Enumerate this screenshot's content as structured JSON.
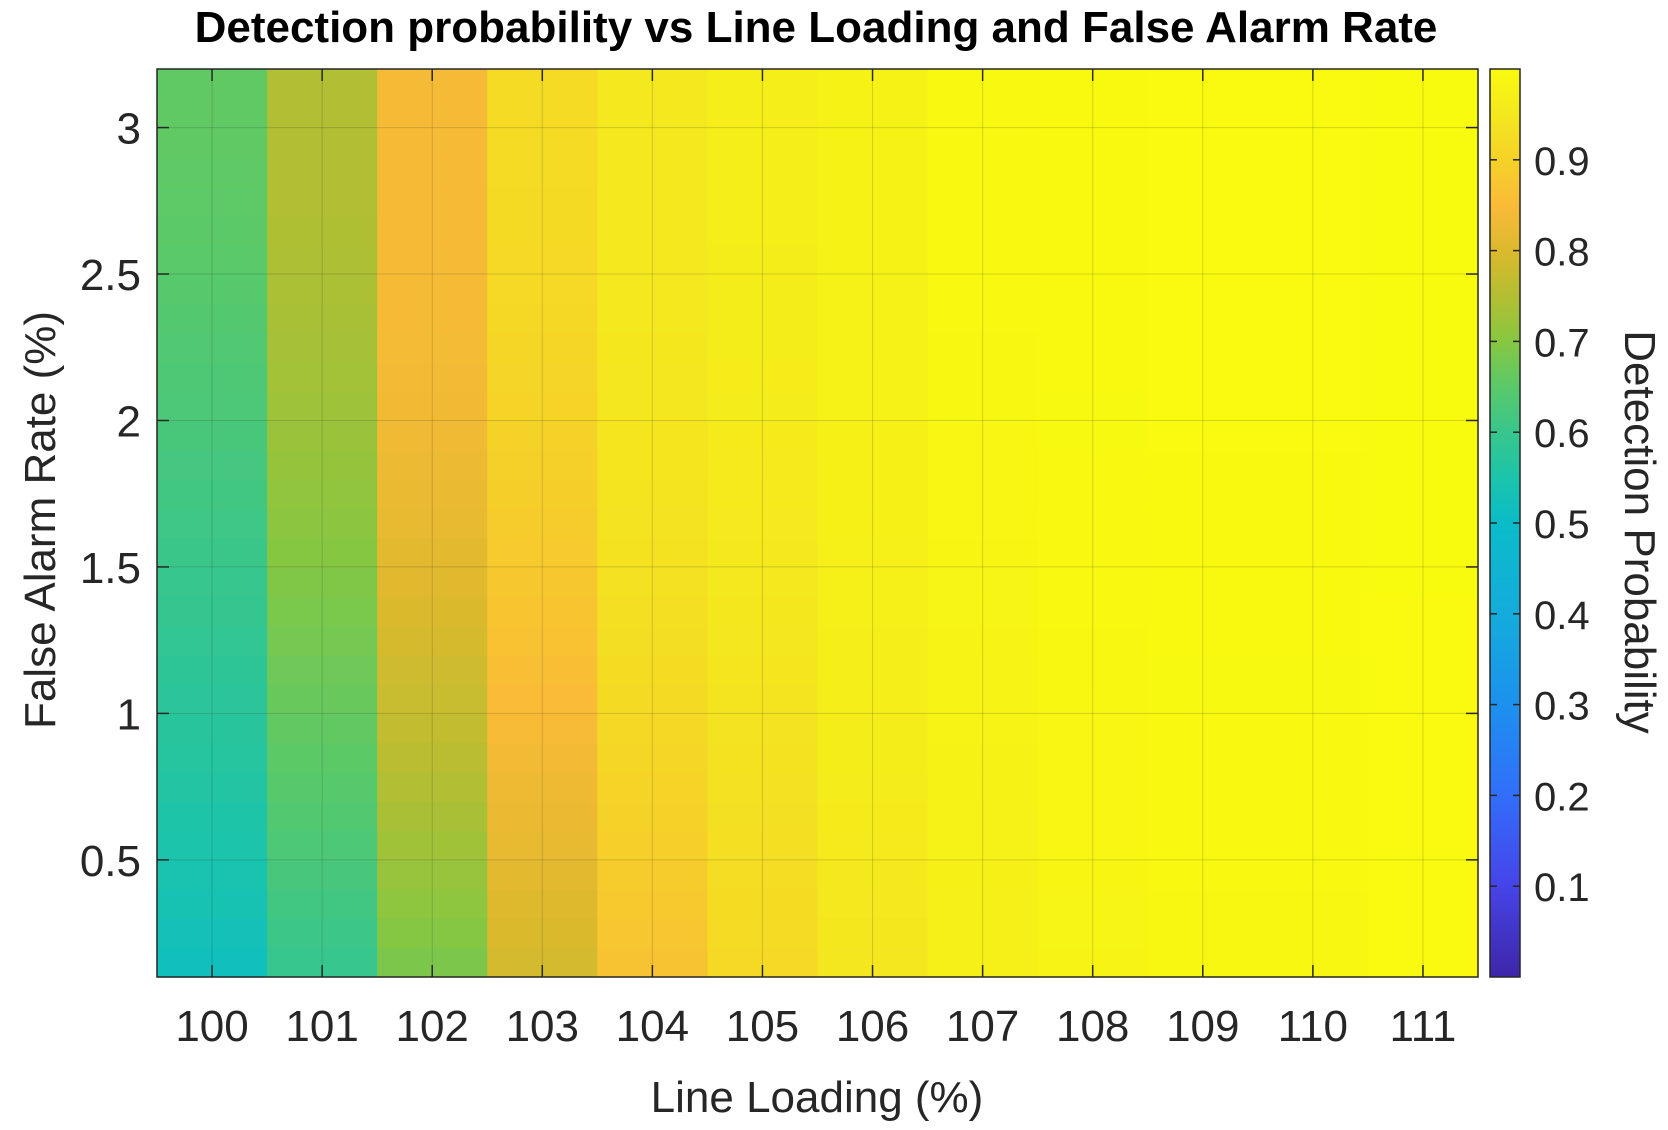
{
  "chart_data": {
    "type": "heatmap",
    "title": "Detection probability vs Line Loading and False Alarm Rate",
    "xlabel": "Line Loading (%)",
    "ylabel": "False Alarm Rate (%)",
    "colorbar_label": "Detection Probability",
    "x": [
      100,
      101,
      102,
      103,
      104,
      105,
      106,
      107,
      108,
      109,
      110,
      111
    ],
    "xlim": [
      99.5,
      111.5
    ],
    "y": [
      0.15,
      0.25,
      0.35,
      0.45,
      0.55,
      0.65,
      0.75,
      0.85,
      0.95,
      1.05,
      1.15,
      1.25,
      1.35,
      1.45,
      1.55,
      1.65,
      1.75,
      1.85,
      1.95,
      2.05,
      2.15,
      2.25,
      2.35,
      2.45,
      2.55,
      2.65,
      2.75,
      2.85,
      2.95,
      3.05,
      3.15
    ],
    "ylim": [
      0.1,
      3.2
    ],
    "x_ticks": [
      "100",
      "101",
      "102",
      "103",
      "104",
      "105",
      "106",
      "107",
      "108",
      "109",
      "110",
      "111"
    ],
    "y_ticks": [
      0.5,
      1,
      1.5,
      2,
      2.5,
      3
    ],
    "y_tick_labels": [
      "0.5",
      "1",
      "1.5",
      "2",
      "2.5",
      "3"
    ],
    "colorbar_range": [
      0.0,
      1.0
    ],
    "colorbar_ticks": [
      0.1,
      0.2,
      0.3,
      0.4,
      0.5,
      0.6,
      0.7,
      0.8,
      0.9
    ],
    "colorbar_tick_labels": [
      "0.1",
      "0.2",
      "0.3",
      "0.4",
      "0.5",
      "0.6",
      "0.7",
      "0.8",
      "0.9"
    ],
    "colormap": "parula",
    "grid": true,
    "col_base": [
      0.52,
      0.598,
      0.688,
      0.79,
      0.867,
      0.917,
      0.945,
      0.968,
      0.982,
      0.99,
      0.99,
      0.998
    ],
    "col_top": [
      0.658,
      0.745,
      0.843,
      0.92,
      0.95,
      0.965,
      0.975,
      0.992,
      0.996,
      0.998,
      0.998,
      0.999
    ],
    "values": [
      [
        0.52,
        0.598,
        0.688,
        0.79,
        0.867,
        0.917,
        0.945,
        0.968,
        0.982,
        0.99,
        0.99,
        0.998
      ],
      [
        0.527,
        0.606,
        0.698,
        0.797,
        0.874,
        0.92,
        0.948,
        0.969,
        0.983,
        0.99,
        0.99,
        0.998
      ],
      [
        0.535,
        0.615,
        0.708,
        0.804,
        0.88,
        0.923,
        0.951,
        0.97,
        0.984,
        0.99,
        0.99,
        0.998
      ],
      [
        0.542,
        0.623,
        0.718,
        0.811,
        0.887,
        0.926,
        0.953,
        0.972,
        0.985,
        0.991,
        0.991,
        0.998
      ],
      [
        0.548,
        0.63,
        0.728,
        0.818,
        0.893,
        0.929,
        0.956,
        0.973,
        0.986,
        0.992,
        0.992,
        0.998
      ],
      [
        0.554,
        0.638,
        0.738,
        0.825,
        0.899,
        0.931,
        0.958,
        0.974,
        0.986,
        0.992,
        0.992,
        0.998
      ],
      [
        0.56,
        0.645,
        0.748,
        0.832,
        0.904,
        0.934,
        0.96,
        0.975,
        0.987,
        0.993,
        0.993,
        0.998
      ],
      [
        0.566,
        0.652,
        0.757,
        0.839,
        0.909,
        0.937,
        0.962,
        0.977,
        0.988,
        0.993,
        0.993,
        0.998
      ],
      [
        0.572,
        0.659,
        0.766,
        0.846,
        0.914,
        0.939,
        0.963,
        0.978,
        0.988,
        0.993,
        0.993,
        0.998
      ],
      [
        0.578,
        0.666,
        0.775,
        0.852,
        0.919,
        0.942,
        0.965,
        0.979,
        0.989,
        0.994,
        0.994,
        0.998
      ],
      [
        0.583,
        0.673,
        0.783,
        0.859,
        0.923,
        0.944,
        0.966,
        0.98,
        0.99,
        0.994,
        0.994,
        0.998
      ],
      [
        0.588,
        0.68,
        0.791,
        0.865,
        0.927,
        0.946,
        0.967,
        0.982,
        0.99,
        0.995,
        0.995,
        0.998
      ],
      [
        0.594,
        0.686,
        0.799,
        0.871,
        0.93,
        0.948,
        0.968,
        0.983,
        0.991,
        0.995,
        0.995,
        0.998
      ],
      [
        0.599,
        0.693,
        0.806,
        0.876,
        0.933,
        0.95,
        0.969,
        0.984,
        0.991,
        0.995,
        0.995,
        0.999
      ],
      [
        0.604,
        0.699,
        0.812,
        0.882,
        0.936,
        0.952,
        0.97,
        0.985,
        0.992,
        0.996,
        0.996,
        0.999
      ],
      [
        0.609,
        0.705,
        0.818,
        0.887,
        0.939,
        0.954,
        0.971,
        0.986,
        0.992,
        0.996,
        0.996,
        0.999
      ],
      [
        0.614,
        0.711,
        0.824,
        0.892,
        0.941,
        0.956,
        0.971,
        0.987,
        0.993,
        0.996,
        0.996,
        0.999
      ],
      [
        0.619,
        0.716,
        0.829,
        0.896,
        0.943,
        0.957,
        0.972,
        0.988,
        0.993,
        0.996,
        0.996,
        0.999
      ],
      [
        0.624,
        0.721,
        0.833,
        0.9,
        0.944,
        0.959,
        0.972,
        0.988,
        0.994,
        0.997,
        0.997,
        0.999
      ],
      [
        0.629,
        0.726,
        0.836,
        0.904,
        0.946,
        0.96,
        0.973,
        0.989,
        0.994,
        0.997,
        0.997,
        0.999
      ],
      [
        0.633,
        0.73,
        0.839,
        0.907,
        0.947,
        0.961,
        0.973,
        0.99,
        0.995,
        0.997,
        0.997,
        0.999
      ],
      [
        0.637,
        0.734,
        0.84,
        0.91,
        0.948,
        0.962,
        0.974,
        0.99,
        0.995,
        0.997,
        0.997,
        0.999
      ],
      [
        0.641,
        0.737,
        0.841,
        0.913,
        0.949,
        0.963,
        0.974,
        0.991,
        0.995,
        0.998,
        0.998,
        0.999
      ],
      [
        0.644,
        0.74,
        0.842,
        0.915,
        0.949,
        0.964,
        0.974,
        0.991,
        0.996,
        0.998,
        0.998,
        0.999
      ],
      [
        0.648,
        0.742,
        0.843,
        0.917,
        0.95,
        0.964,
        0.975,
        0.992,
        0.996,
        0.998,
        0.998,
        0.999
      ],
      [
        0.651,
        0.744,
        0.843,
        0.918,
        0.95,
        0.965,
        0.975,
        0.992,
        0.996,
        0.998,
        0.998,
        0.999
      ],
      [
        0.653,
        0.745,
        0.843,
        0.919,
        0.95,
        0.965,
        0.975,
        0.992,
        0.996,
        0.998,
        0.998,
        0.999
      ],
      [
        0.655,
        0.745,
        0.843,
        0.92,
        0.95,
        0.965,
        0.975,
        0.992,
        0.996,
        0.998,
        0.998,
        0.999
      ],
      [
        0.657,
        0.745,
        0.843,
        0.92,
        0.95,
        0.965,
        0.975,
        0.992,
        0.996,
        0.998,
        0.998,
        0.999
      ],
      [
        0.658,
        0.745,
        0.843,
        0.92,
        0.95,
        0.965,
        0.975,
        0.992,
        0.996,
        0.998,
        0.998,
        0.999
      ],
      [
        0.658,
        0.745,
        0.843,
        0.92,
        0.95,
        0.965,
        0.975,
        0.992,
        0.996,
        0.998,
        0.998,
        0.999
      ]
    ]
  }
}
